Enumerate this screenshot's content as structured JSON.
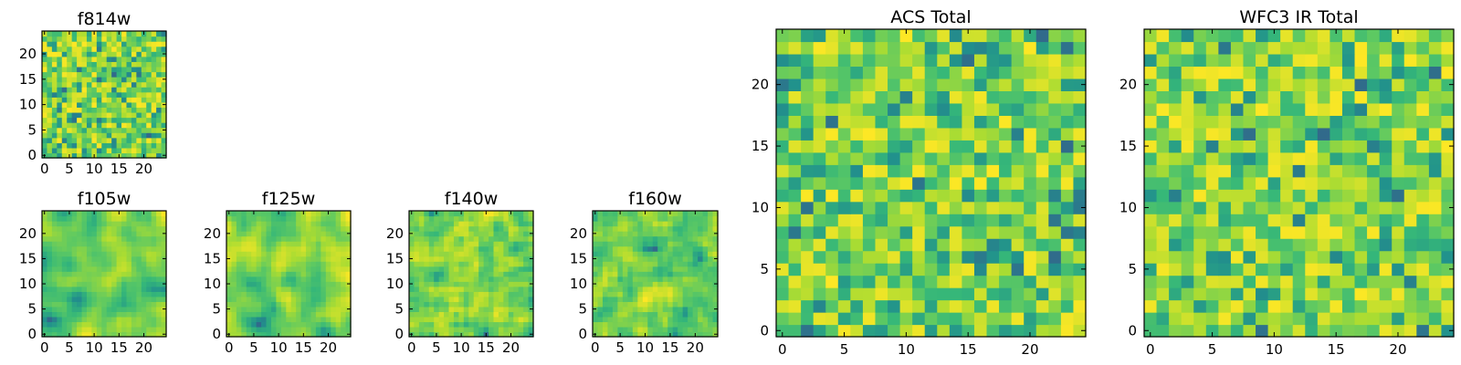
{
  "chart_data": [
    {
      "type": "heatmap",
      "title": "f814w",
      "colormap": "viridis",
      "grid_size": 25,
      "seed": 11,
      "smooth": 0,
      "x_ticks": [
        "0",
        "5",
        "10",
        "15",
        "20"
      ],
      "y_ticks": [
        "0",
        "5",
        "10",
        "15",
        "20"
      ],
      "xlim": [
        0,
        25
      ],
      "ylim": [
        0,
        25
      ]
    },
    {
      "type": "heatmap",
      "title": "f105w",
      "colormap": "viridis",
      "grid_size": 25,
      "seed": 22,
      "smooth": 2,
      "x_ticks": [
        "0",
        "5",
        "10",
        "15",
        "20"
      ],
      "y_ticks": [
        "0",
        "5",
        "10",
        "15",
        "20"
      ],
      "xlim": [
        0,
        25
      ],
      "ylim": [
        0,
        25
      ]
    },
    {
      "type": "heatmap",
      "title": "f125w",
      "colormap": "viridis",
      "grid_size": 25,
      "seed": 33,
      "smooth": 2,
      "x_ticks": [
        "0",
        "5",
        "10",
        "15",
        "20"
      ],
      "y_ticks": [
        "0",
        "5",
        "10",
        "15",
        "20"
      ],
      "xlim": [
        0,
        25
      ],
      "ylim": [
        0,
        25
      ]
    },
    {
      "type": "heatmap",
      "title": "f140w",
      "colormap": "viridis",
      "grid_size": 25,
      "seed": 44,
      "smooth": 1,
      "x_ticks": [
        "0",
        "5",
        "10",
        "15",
        "20"
      ],
      "y_ticks": [
        "0",
        "5",
        "10",
        "15",
        "20"
      ],
      "xlim": [
        0,
        25
      ],
      "ylim": [
        0,
        25
      ]
    },
    {
      "type": "heatmap",
      "title": "f160w",
      "colormap": "viridis",
      "grid_size": 25,
      "seed": 55,
      "smooth": 1,
      "x_ticks": [
        "0",
        "5",
        "10",
        "15",
        "20"
      ],
      "y_ticks": [
        "0",
        "5",
        "10",
        "15",
        "20"
      ],
      "xlim": [
        0,
        25
      ],
      "ylim": [
        0,
        25
      ]
    },
    {
      "type": "heatmap",
      "title": "ACS Total",
      "colormap": "viridis",
      "grid_size": 25,
      "seed": 66,
      "smooth": 0,
      "x_ticks": [
        "0",
        "5",
        "10",
        "15",
        "20"
      ],
      "y_ticks": [
        "0",
        "5",
        "10",
        "15",
        "20"
      ],
      "xlim": [
        0,
        25
      ],
      "ylim": [
        0,
        25
      ]
    },
    {
      "type": "heatmap",
      "title": "WFC3 IR Total",
      "colormap": "viridis",
      "grid_size": 25,
      "seed": 77,
      "smooth": 0,
      "x_ticks": [
        "0",
        "5",
        "10",
        "15",
        "20"
      ],
      "y_ticks": [
        "0",
        "5",
        "10",
        "15",
        "20"
      ],
      "xlim": [
        0,
        25
      ],
      "ylim": [
        0,
        25
      ]
    }
  ]
}
